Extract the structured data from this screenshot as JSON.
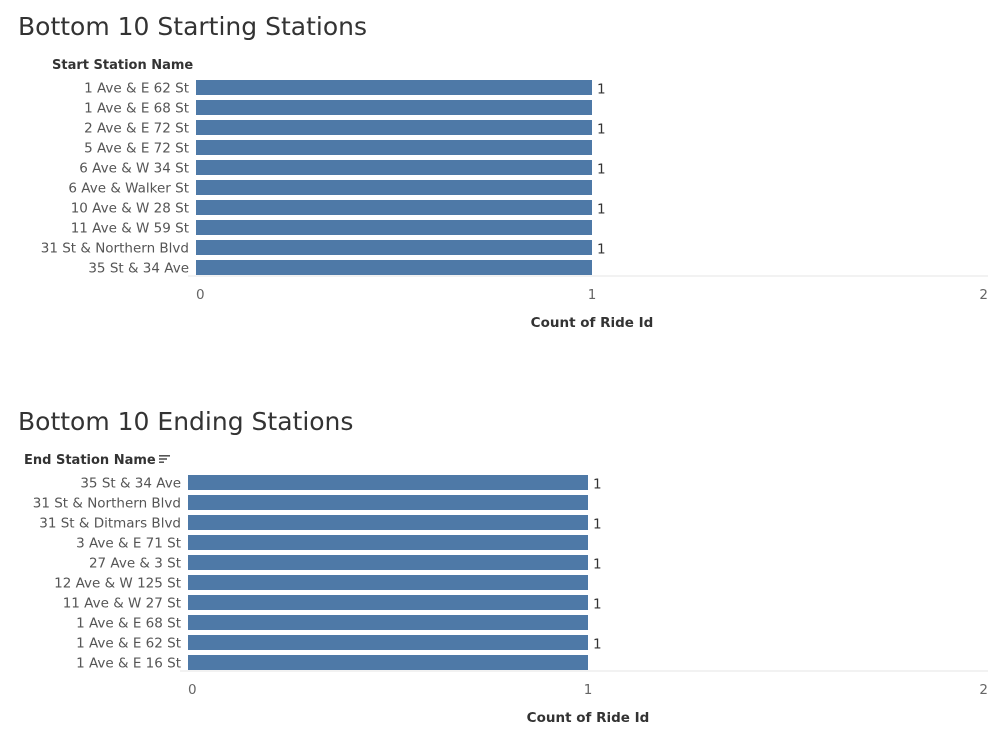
{
  "colors": {
    "bar": "#4e79a7",
    "label": "#555555",
    "axis_title": "#333333",
    "tick": "#666666",
    "baseline": "#e6e6e6"
  },
  "chart_data": [
    {
      "type": "bar",
      "orientation": "horizontal",
      "title": "Bottom 10 Starting Stations",
      "row_header": "Start Station Name",
      "sort_icon": false,
      "categories": [
        "1 Ave & E 62 St",
        "1 Ave & E 68 St",
        "2 Ave & E 72 St",
        "5 Ave & E 72 St",
        "6 Ave & W 34 St",
        "6 Ave & Walker St",
        "10 Ave & W 28 St",
        "11 Ave & W 59 St",
        "31 St & Northern Blvd",
        "35 St & 34 Ave"
      ],
      "values": [
        1,
        1,
        1,
        1,
        1,
        1,
        1,
        1,
        1,
        1
      ],
      "data_labels": [
        "1",
        "",
        "1",
        "",
        "1",
        "",
        "1",
        "",
        "1",
        ""
      ],
      "xlabel": "Count of Ride Id",
      "xlim": [
        0,
        2
      ],
      "xticks": [
        "0",
        "1",
        "2"
      ],
      "grid": false
    },
    {
      "type": "bar",
      "orientation": "horizontal",
      "title": "Bottom 10 Ending Stations",
      "row_header": "End Station Name",
      "sort_icon": true,
      "categories": [
        "35 St & 34 Ave",
        "31 St & Northern Blvd",
        "31 St & Ditmars Blvd",
        "3 Ave & E 71 St",
        "27 Ave & 3 St",
        "12 Ave & W 125 St",
        "11 Ave & W 27 St",
        "1 Ave & E 68 St",
        "1 Ave & E 62 St",
        "1 Ave & E 16 St"
      ],
      "values": [
        1,
        1,
        1,
        1,
        1,
        1,
        1,
        1,
        1,
        1
      ],
      "data_labels": [
        "1",
        "",
        "1",
        "",
        "1",
        "",
        "1",
        "",
        "1",
        ""
      ],
      "xlabel": "Count of Ride Id",
      "xlim": [
        0,
        2
      ],
      "xticks": [
        "0",
        "1",
        "2"
      ],
      "grid": false
    }
  ]
}
